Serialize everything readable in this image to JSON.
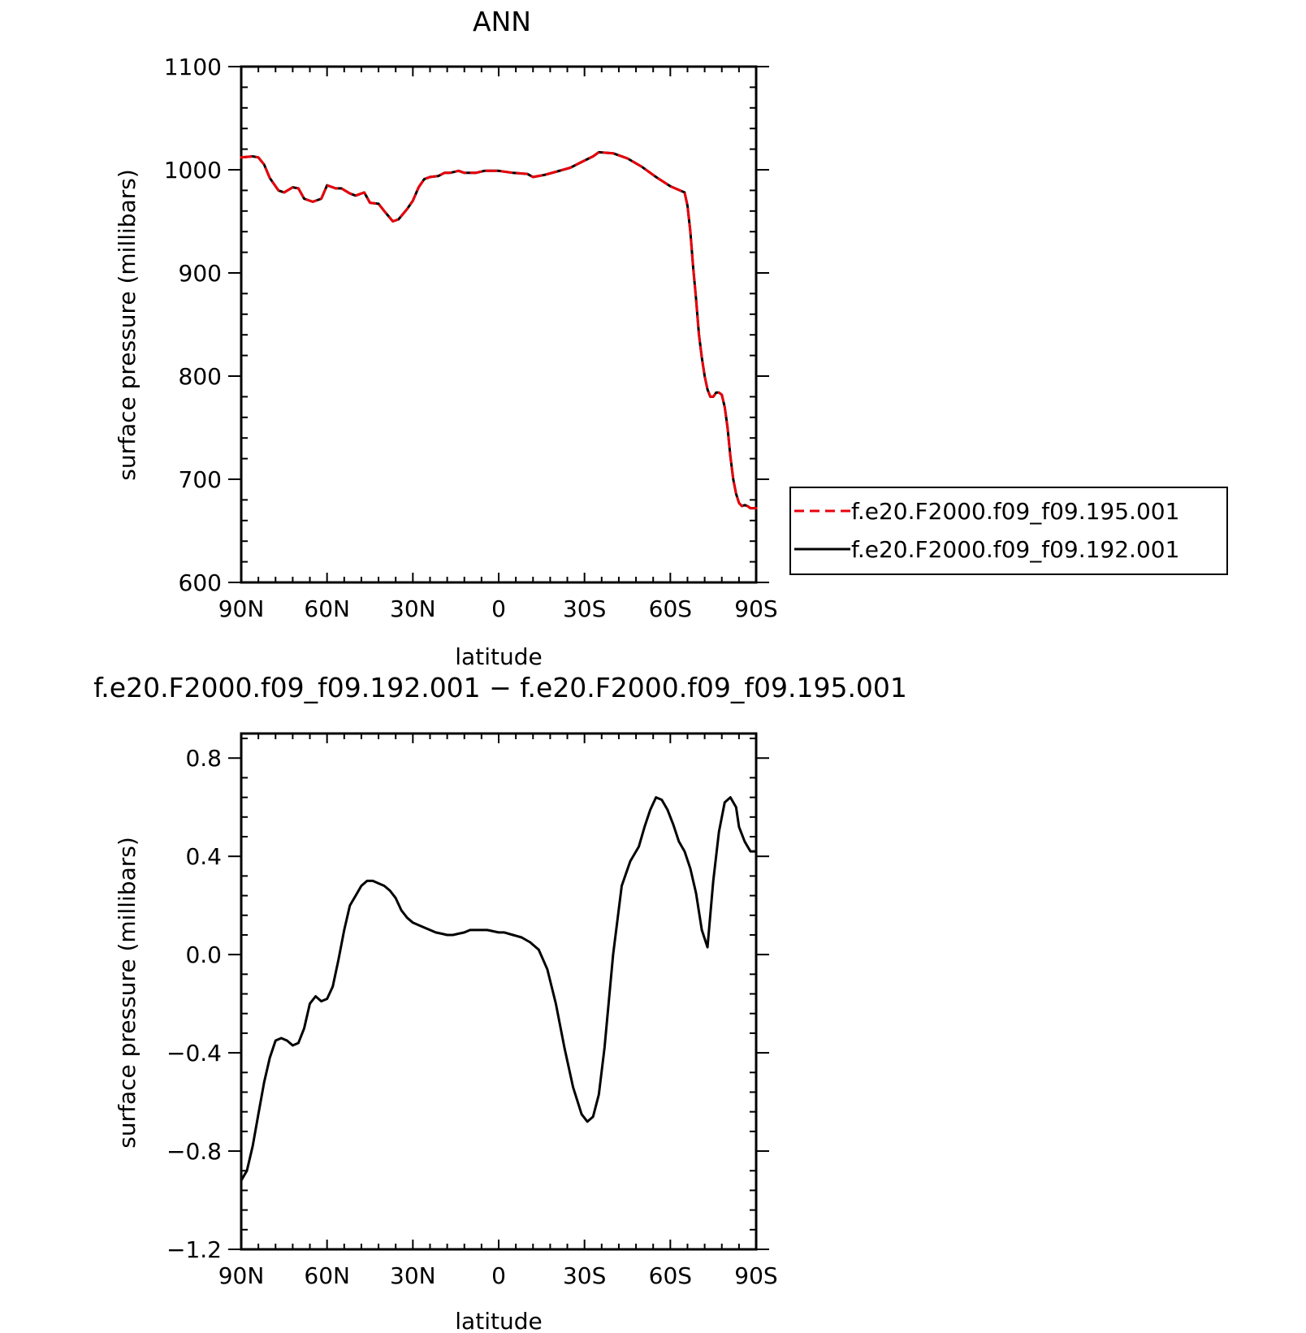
{
  "chart_data": [
    {
      "type": "line",
      "title": "ANN",
      "xlabel": "latitude",
      "ylabel": "surface pressure (millibars)",
      "xlim": [
        90,
        -90
      ],
      "ylim": [
        600,
        1100
      ],
      "xticks": [
        90,
        60,
        30,
        0,
        -30,
        -60,
        -90
      ],
      "xtick_labels": [
        "90N",
        "60N",
        "30N",
        "0",
        "30S",
        "60S",
        "90S"
      ],
      "yticks": [
        600,
        700,
        800,
        900,
        1000,
        1100
      ],
      "ytick_labels": [
        "600",
        "700",
        "800",
        "900",
        "1000",
        "1100"
      ],
      "grid": false,
      "legend": "right",
      "series": [
        {
          "name": "f.e20.F2000.f09_f09.195.001",
          "color": "#e8000b",
          "dash": "dashed",
          "x": [
            90,
            86,
            84,
            82,
            80,
            77,
            75,
            72,
            70,
            68,
            65,
            62,
            60,
            57,
            55,
            52,
            50,
            47,
            45,
            42,
            40,
            37,
            35,
            32,
            30,
            28,
            26,
            24,
            21,
            19,
            17,
            14,
            12,
            10,
            8,
            5,
            0,
            -5,
            -10,
            -12,
            -14,
            -16,
            -20,
            -25,
            -30,
            -33,
            -35,
            -40,
            -45,
            -50,
            -55,
            -60,
            -65,
            -66,
            -67,
            -68,
            -69,
            -70,
            -71,
            -72,
            -73,
            -74,
            -75,
            -76,
            -77,
            -78,
            -79,
            -80,
            -81,
            -82,
            -83,
            -84,
            -85,
            -86,
            -87,
            -88,
            -89,
            -90
          ],
          "values": [
            1012,
            1013,
            1012,
            1005,
            992,
            980,
            978,
            983,
            982,
            972,
            969,
            972,
            985,
            982,
            982,
            977,
            975,
            978,
            968,
            967,
            960,
            950,
            952,
            962,
            970,
            983,
            991,
            993,
            994,
            997,
            997,
            999,
            997,
            997,
            997,
            999,
            999,
            997,
            996,
            993,
            994,
            995,
            998,
            1002,
            1009,
            1013,
            1017,
            1016,
            1011,
            1003,
            993,
            984,
            978,
            965,
            940,
            905,
            875,
            840,
            818,
            800,
            787,
            780,
            780,
            784,
            784,
            782,
            770,
            750,
            722,
            700,
            686,
            677,
            674,
            675,
            674,
            672,
            672,
            672
          ]
        },
        {
          "name": "f.e20.F2000.f09_f09.192.001",
          "color": "#000000",
          "dash": "solid",
          "x": [
            90,
            86,
            84,
            82,
            80,
            77,
            75,
            72,
            70,
            68,
            65,
            62,
            60,
            57,
            55,
            52,
            50,
            47,
            45,
            42,
            40,
            37,
            35,
            32,
            30,
            28,
            26,
            24,
            21,
            19,
            17,
            14,
            12,
            10,
            8,
            5,
            0,
            -5,
            -10,
            -12,
            -14,
            -16,
            -20,
            -25,
            -30,
            -33,
            -35,
            -40,
            -45,
            -50,
            -55,
            -60,
            -65,
            -66,
            -67,
            -68,
            -69,
            -70,
            -71,
            -72,
            -73,
            -74,
            -75,
            -76,
            -77,
            -78,
            -79,
            -80,
            -81,
            -82,
            -83,
            -84,
            -85,
            -86,
            -87,
            -88,
            -89,
            -90
          ],
          "values": [
            1012,
            1013,
            1012,
            1005,
            992,
            980,
            978,
            983,
            982,
            972,
            969,
            972,
            985,
            982,
            982,
            977,
            975,
            978,
            968,
            967,
            960,
            950,
            952,
            962,
            970,
            983,
            991,
            993,
            994,
            997,
            997,
            999,
            997,
            997,
            997,
            999,
            999,
            997,
            996,
            993,
            994,
            995,
            998,
            1002,
            1009,
            1013,
            1017,
            1016,
            1011,
            1003,
            993,
            984,
            978,
            965,
            940,
            905,
            875,
            840,
            818,
            800,
            787,
            780,
            780,
            784,
            784,
            782,
            770,
            750,
            722,
            700,
            686,
            677,
            674,
            675,
            674,
            672,
            672,
            672
          ]
        }
      ]
    },
    {
      "type": "line",
      "title": "f.e20.F2000.f09_f09.192.001 − f.e20.F2000.f09_f09.195.001",
      "xlabel": "latitude",
      "ylabel": "surface pressure (millibars)",
      "xlim": [
        90,
        -90
      ],
      "ylim": [
        -1.2,
        0.9
      ],
      "xticks": [
        90,
        60,
        30,
        0,
        -30,
        -60,
        -90
      ],
      "xtick_labels": [
        "90N",
        "60N",
        "30N",
        "0",
        "30S",
        "60S",
        "90S"
      ],
      "yticks": [
        -1.2,
        -0.8,
        -0.4,
        0.0,
        0.4,
        0.8
      ],
      "ytick_labels": [
        "−1.2",
        "−0.8",
        "−0.4",
        "0.0",
        "0.4",
        "0.8"
      ],
      "grid": false,
      "series": [
        {
          "color": "#000000",
          "dash": "solid",
          "x": [
            90,
            88,
            86,
            84,
            82,
            80,
            78,
            76,
            74,
            72,
            70,
            68,
            66,
            64,
            62,
            60,
            58,
            56,
            54,
            52,
            50,
            48,
            46,
            44,
            42,
            40,
            38,
            36,
            34,
            32,
            30,
            28,
            26,
            24,
            22,
            20,
            18,
            16,
            14,
            12,
            10,
            8,
            6,
            4,
            2,
            0,
            -2,
            -5,
            -8,
            -11,
            -14,
            -17,
            -20,
            -23,
            -26,
            -29,
            -31,
            -33,
            -35,
            -37,
            -40,
            -43,
            -46,
            -49,
            -51,
            -53,
            -55,
            -57,
            -59,
            -61,
            -63,
            -65,
            -67,
            -69,
            -71,
            -73,
            -75,
            -77,
            -79,
            -81,
            -83,
            -84,
            -86,
            -88,
            -90
          ],
          "values": [
            -0.92,
            -0.88,
            -0.78,
            -0.65,
            -0.52,
            -0.42,
            -0.35,
            -0.34,
            -0.35,
            -0.37,
            -0.36,
            -0.3,
            -0.2,
            -0.17,
            -0.19,
            -0.18,
            -0.13,
            -0.02,
            0.1,
            0.2,
            0.24,
            0.28,
            0.3,
            0.3,
            0.29,
            0.28,
            0.26,
            0.23,
            0.18,
            0.15,
            0.13,
            0.12,
            0.11,
            0.1,
            0.09,
            0.085,
            0.08,
            0.08,
            0.085,
            0.09,
            0.1,
            0.1,
            0.1,
            0.1,
            0.095,
            0.09,
            0.09,
            0.08,
            0.07,
            0.05,
            0.02,
            -0.06,
            -0.2,
            -0.38,
            -0.54,
            -0.65,
            -0.68,
            -0.66,
            -0.57,
            -0.38,
            0.0,
            0.28,
            0.38,
            0.44,
            0.52,
            0.59,
            0.64,
            0.63,
            0.59,
            0.53,
            0.46,
            0.42,
            0.35,
            0.25,
            0.1,
            0.03,
            0.3,
            0.5,
            0.62,
            0.64,
            0.6,
            0.52,
            0.46,
            0.42,
            0.42
          ]
        }
      ]
    }
  ],
  "legend": {
    "entries": [
      {
        "label": "f.e20.F2000.f09_f09.195.001",
        "color": "#e8000b",
        "dash": "dashed"
      },
      {
        "label": "f.e20.F2000.f09_f09.192.001",
        "color": "#000000",
        "dash": "solid"
      }
    ]
  }
}
